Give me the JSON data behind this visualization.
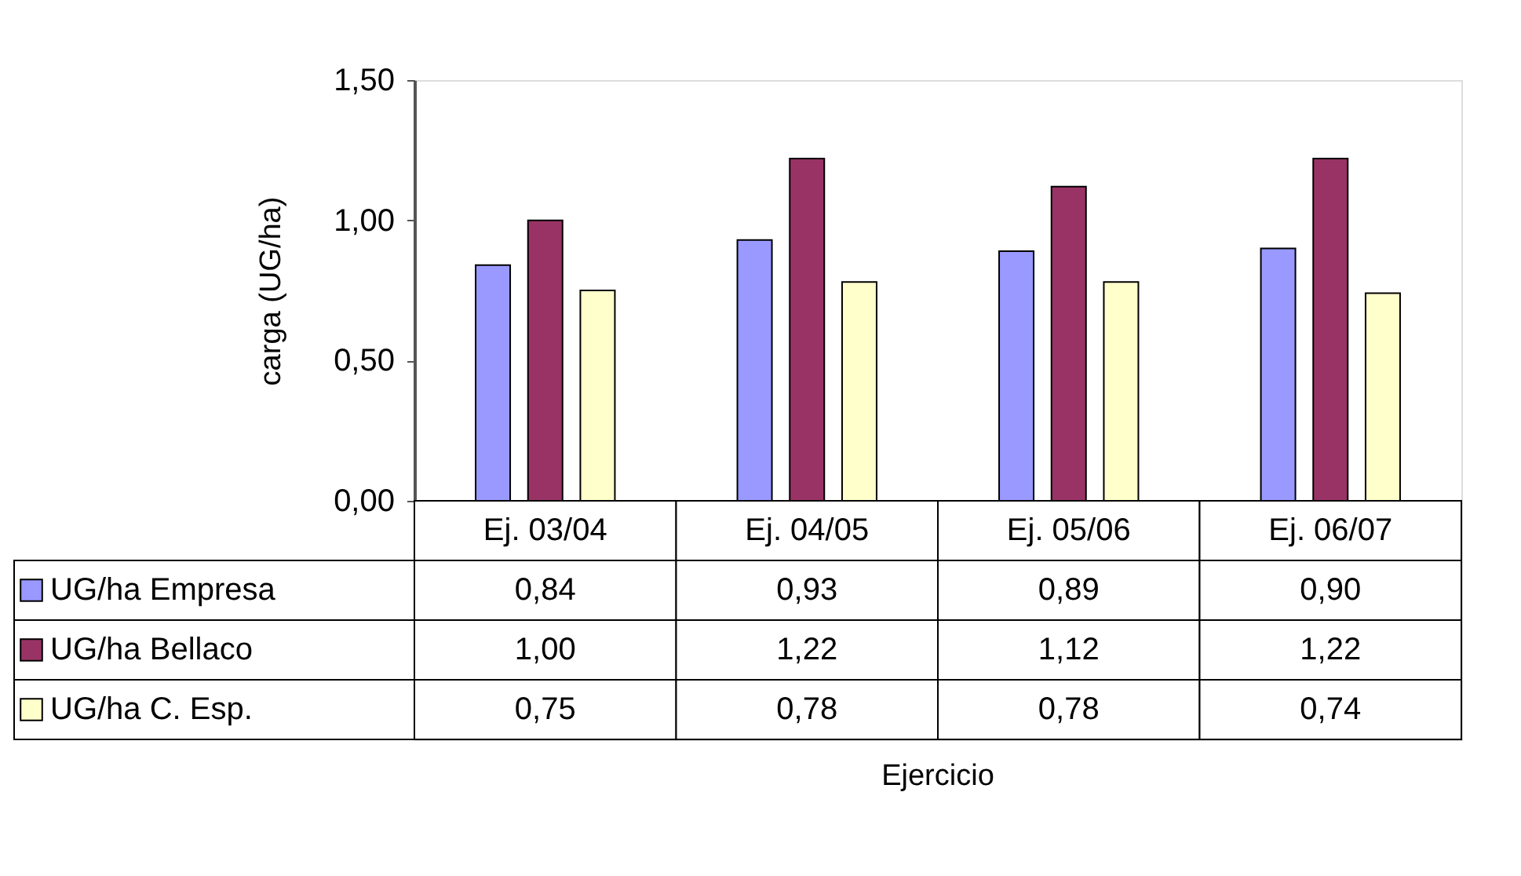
{
  "chart_data": {
    "type": "bar",
    "ylabel": "carga (UG/ha)",
    "annotations": [
      "Ejercicio"
    ],
    "categories": [
      "Ej. 03/04",
      "Ej. 04/05",
      "Ej. 05/06",
      "Ej. 06/07"
    ],
    "series": [
      {
        "name": "UG/ha Empresa",
        "color": "#9999ff",
        "values": [
          0.84,
          0.93,
          0.89,
          0.9
        ],
        "value_labels": [
          "0,84",
          "0,93",
          "0,89",
          "0,90"
        ]
      },
      {
        "name": "UG/ha Bellaco",
        "color": "#993366",
        "values": [
          1.0,
          1.22,
          1.12,
          1.22
        ],
        "value_labels": [
          "1,00",
          "1,22",
          "1,12",
          "1,22"
        ]
      },
      {
        "name": "UG/ha C. Esp.",
        "color": "#ffffcc",
        "values": [
          0.75,
          0.78,
          0.78,
          0.74
        ],
        "value_labels": [
          "0,75",
          "0,78",
          "0,78",
          "0,74"
        ]
      }
    ],
    "ylim": [
      0,
      1.5
    ],
    "yticks": [
      {
        "value": 0,
        "label": "0,00"
      },
      {
        "value": 0.5,
        "label": "0,50"
      },
      {
        "value": 1.0,
        "label": "1,00"
      },
      {
        "value": 1.5,
        "label": "1,50"
      }
    ],
    "grid": false,
    "legend": "bottom left"
  }
}
